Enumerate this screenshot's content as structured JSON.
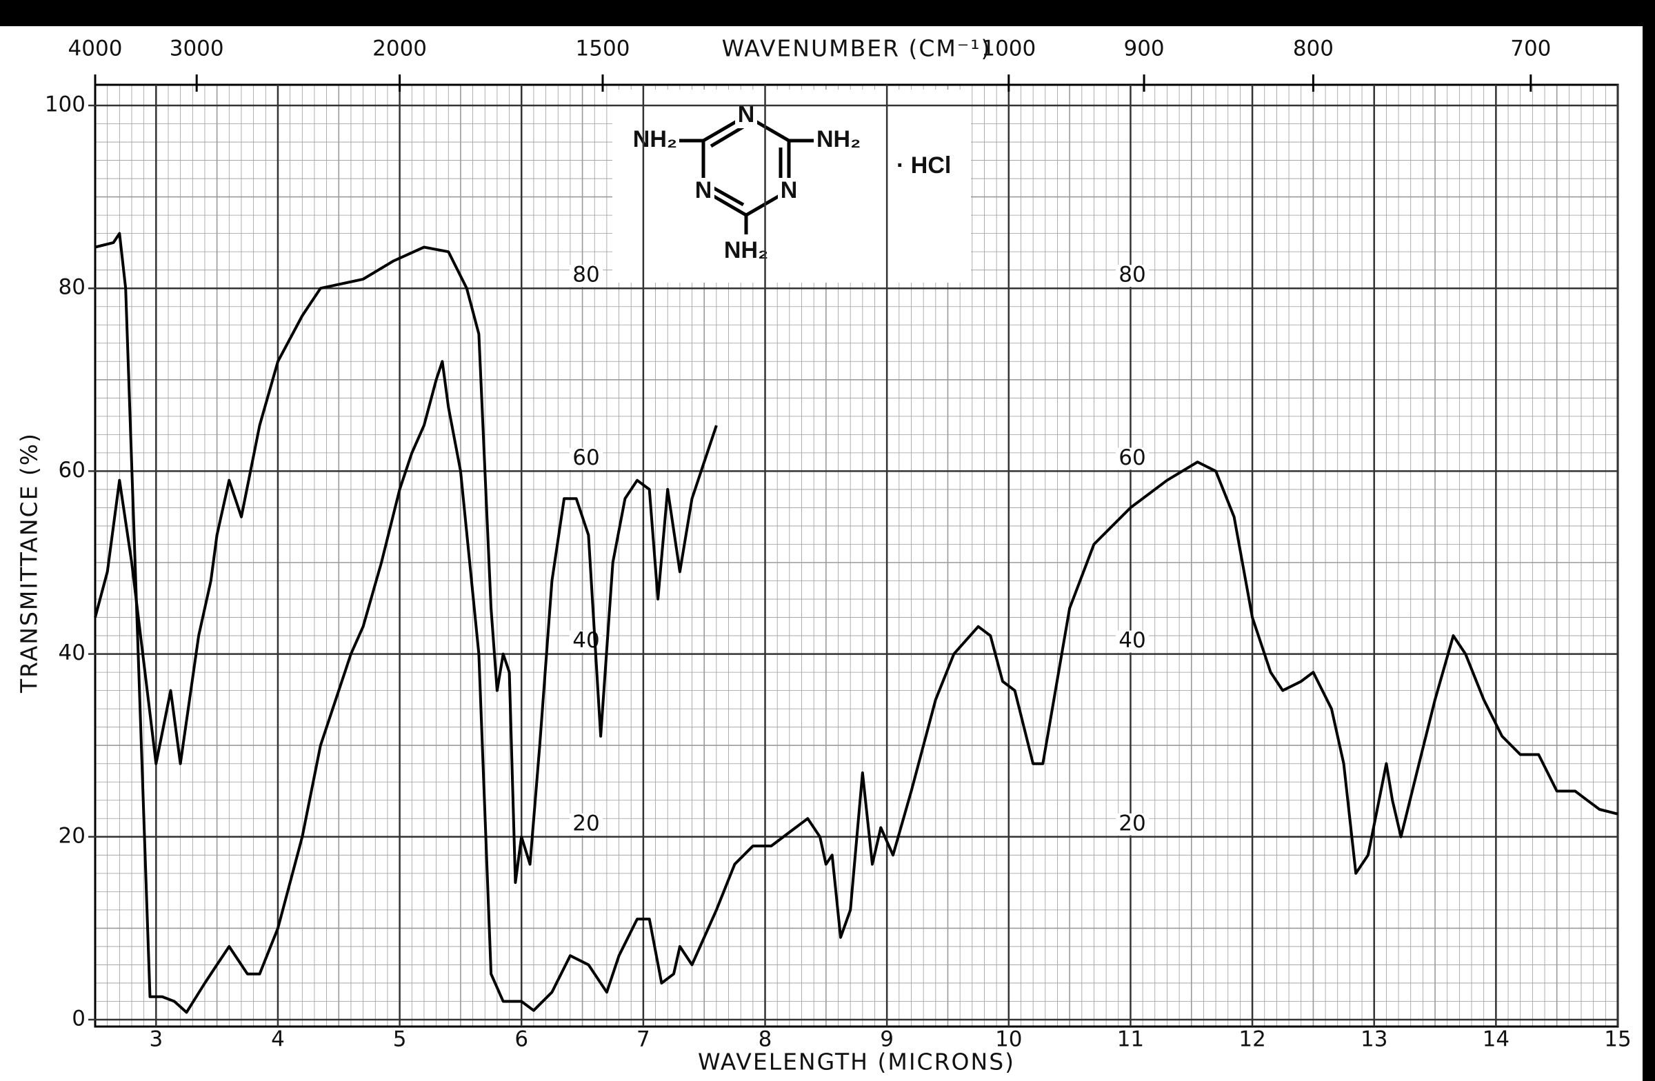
{
  "chart_data": {
    "type": "line",
    "xlabel": "WAVELENGTH (MICRONS)",
    "ylabel": "TRANSMITTANCE (%)",
    "x2label": "WAVENUMBER (CM⁻¹)",
    "xlim": [
      2.5,
      15
    ],
    "xticks": [
      3,
      4,
      5,
      6,
      7,
      8,
      9,
      10,
      11,
      12,
      13,
      14,
      15
    ],
    "x2ticks": [
      4000,
      3000,
      2000,
      1500,
      1000,
      900,
      800,
      700
    ],
    "ylim": [
      0,
      100
    ],
    "yticks": [
      0,
      20,
      40,
      60,
      80,
      100
    ],
    "inner_labels": [
      80,
      60,
      40,
      20
    ],
    "grid": true,
    "structure": {
      "substituents": [
        "NH₂",
        "NH₂",
        "NH₂"
      ],
      "ring_atoms": [
        "N",
        "N",
        "N"
      ],
      "salt": "· HCl"
    },
    "series": [
      {
        "color": "#000000",
        "x": [
          2.5,
          2.65,
          2.7,
          2.75,
          2.95,
          3.05,
          3.15,
          3.25,
          3.4,
          3.5,
          3.6,
          3.75,
          3.85,
          4.0,
          4.2,
          4.35,
          4.6,
          4.7,
          4.85,
          5.0,
          5.1,
          5.2,
          5.3,
          5.35,
          5.4,
          5.5,
          5.65,
          5.75,
          5.85,
          6.0,
          6.1,
          6.25,
          6.4,
          6.55,
          6.7,
          6.8,
          6.95,
          7.05,
          7.15,
          7.25,
          7.3,
          7.4,
          7.6,
          7.75,
          7.9,
          8.05,
          8.25,
          8.35,
          8.45,
          8.5,
          8.55,
          8.62,
          8.7,
          8.8,
          8.88,
          8.95,
          9.05,
          9.2,
          9.4,
          9.55,
          9.75,
          9.85,
          9.95,
          10.05,
          10.2,
          10.28,
          10.5,
          10.7,
          11.0,
          11.3,
          11.55,
          11.7,
          11.85,
          12.0,
          12.15,
          12.25,
          12.4,
          12.5,
          12.65,
          12.75,
          12.85,
          12.95,
          13.1,
          13.15,
          13.22,
          13.35,
          13.5,
          13.65,
          13.75,
          13.9,
          14.05,
          14.2,
          14.35,
          14.5,
          14.65,
          14.75,
          14.85,
          15.0
        ],
        "values": [
          84.5,
          85,
          86,
          80,
          2.5,
          2.5,
          2,
          0.8,
          4,
          6,
          8,
          5,
          5,
          10,
          20,
          30,
          40,
          43,
          50,
          58,
          62,
          65,
          70,
          72,
          67,
          60,
          40,
          5,
          2,
          2,
          1,
          3,
          7,
          6,
          3,
          7,
          11,
          11,
          4,
          5,
          8,
          6,
          12,
          17,
          19,
          19,
          21,
          22,
          20,
          17,
          18,
          9,
          12,
          27,
          17,
          21,
          18,
          25,
          35,
          40,
          43,
          42,
          37,
          36,
          28,
          28,
          45,
          52,
          56,
          59,
          61,
          60,
          55,
          44,
          38,
          36,
          37,
          38,
          34,
          28,
          16,
          18,
          28,
          24,
          20,
          27,
          35,
          42,
          40,
          35,
          31,
          29,
          29,
          25,
          25,
          24,
          23,
          22.5
        ]
      },
      {
        "color": "#000000",
        "x": [
          2.5,
          2.6,
          2.7,
          2.8,
          3.0,
          3.12,
          3.2,
          3.35,
          3.45,
          3.5,
          3.6,
          3.7,
          3.85,
          4.0,
          4.2,
          4.35,
          4.7,
          4.95,
          5.2,
          5.4,
          5.55,
          5.65,
          5.75,
          5.8,
          5.85,
          5.9,
          5.95,
          6.0,
          6.07,
          6.15,
          6.25,
          6.35,
          6.45,
          6.55,
          6.65,
          6.75,
          6.85,
          6.95,
          7.05,
          7.12,
          7.2,
          7.3,
          7.4,
          7.6
        ],
        "values": [
          44,
          49,
          59,
          50,
          28,
          36,
          28,
          42,
          48,
          53,
          59,
          55,
          65,
          72,
          77,
          80,
          81,
          83,
          84.5,
          84,
          80,
          75,
          45,
          36,
          40,
          38,
          15,
          20,
          17,
          30,
          48,
          57,
          57,
          53,
          31,
          50,
          57,
          59,
          58,
          46,
          58,
          49,
          57,
          65
        ]
      }
    ]
  }
}
